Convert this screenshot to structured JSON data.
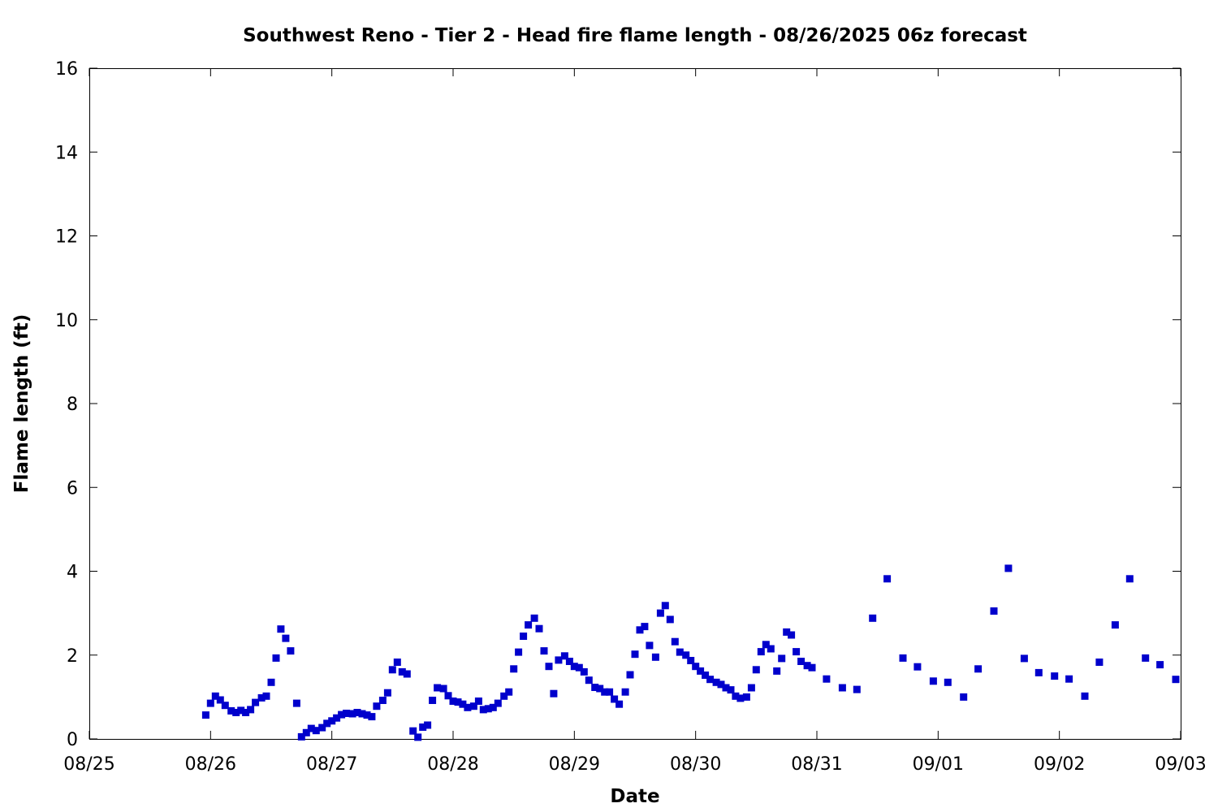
{
  "chart_data": {
    "type": "scatter",
    "title": "Southwest Reno - Tier 2 - Head fire flame length - 08/26/2025 06z forecast",
    "xlabel": "Date",
    "ylabel": "Flame length (ft)",
    "x_unit": "days after 08/25 00z",
    "xlim": [
      0,
      9
    ],
    "ylim": [
      0,
      16
    ],
    "grid": false,
    "legend": "none",
    "x_ticks": [
      "08/25",
      "08/26",
      "08/27",
      "08/28",
      "08/29",
      "08/30",
      "08/31",
      "09/01",
      "09/02",
      "09/03"
    ],
    "y_ticks": [
      "0",
      "2",
      "4",
      "6",
      "8",
      "10",
      "12",
      "14",
      "16"
    ],
    "marker_color": "#0000cc",
    "series": [
      {
        "name": "",
        "points": [
          [
            0.96,
            0.57
          ],
          [
            1.0,
            0.85
          ],
          [
            1.04,
            1.02
          ],
          [
            1.08,
            0.93
          ],
          [
            1.12,
            0.8
          ],
          [
            1.17,
            0.67
          ],
          [
            1.21,
            0.63
          ],
          [
            1.25,
            0.68
          ],
          [
            1.29,
            0.63
          ],
          [
            1.33,
            0.7
          ],
          [
            1.37,
            0.87
          ],
          [
            1.42,
            0.98
          ],
          [
            1.46,
            1.02
          ],
          [
            1.5,
            1.35
          ],
          [
            1.54,
            1.93
          ],
          [
            1.58,
            2.62
          ],
          [
            1.62,
            2.4
          ],
          [
            1.66,
            2.1
          ],
          [
            1.71,
            0.85
          ],
          [
            1.75,
            0.05
          ],
          [
            1.79,
            0.15
          ],
          [
            1.83,
            0.25
          ],
          [
            1.87,
            0.2
          ],
          [
            1.92,
            0.27
          ],
          [
            1.96,
            0.37
          ],
          [
            2.0,
            0.43
          ],
          [
            2.04,
            0.5
          ],
          [
            2.08,
            0.58
          ],
          [
            2.12,
            0.61
          ],
          [
            2.17,
            0.6
          ],
          [
            2.21,
            0.63
          ],
          [
            2.25,
            0.6
          ],
          [
            2.29,
            0.57
          ],
          [
            2.33,
            0.53
          ],
          [
            2.37,
            0.78
          ],
          [
            2.42,
            0.92
          ],
          [
            2.46,
            1.1
          ],
          [
            2.5,
            1.65
          ],
          [
            2.54,
            1.83
          ],
          [
            2.58,
            1.6
          ],
          [
            2.62,
            1.55
          ],
          [
            2.67,
            0.19
          ],
          [
            2.71,
            0.04
          ],
          [
            2.75,
            0.28
          ],
          [
            2.79,
            0.33
          ],
          [
            2.83,
            0.92
          ],
          [
            2.87,
            1.22
          ],
          [
            2.92,
            1.2
          ],
          [
            2.96,
            1.03
          ],
          [
            3.0,
            0.9
          ],
          [
            3.04,
            0.88
          ],
          [
            3.08,
            0.83
          ],
          [
            3.12,
            0.75
          ],
          [
            3.17,
            0.78
          ],
          [
            3.21,
            0.9
          ],
          [
            3.25,
            0.7
          ],
          [
            3.29,
            0.72
          ],
          [
            3.33,
            0.75
          ],
          [
            3.37,
            0.85
          ],
          [
            3.42,
            1.02
          ],
          [
            3.46,
            1.12
          ],
          [
            3.5,
            1.67
          ],
          [
            3.54,
            2.07
          ],
          [
            3.58,
            2.45
          ],
          [
            3.62,
            2.72
          ],
          [
            3.67,
            2.88
          ],
          [
            3.71,
            2.63
          ],
          [
            3.75,
            2.1
          ],
          [
            3.79,
            1.73
          ],
          [
            3.83,
            1.08
          ],
          [
            3.87,
            1.88
          ],
          [
            3.92,
            1.98
          ],
          [
            3.96,
            1.85
          ],
          [
            4.0,
            1.73
          ],
          [
            4.04,
            1.7
          ],
          [
            4.08,
            1.6
          ],
          [
            4.12,
            1.4
          ],
          [
            4.17,
            1.23
          ],
          [
            4.21,
            1.2
          ],
          [
            4.25,
            1.12
          ],
          [
            4.29,
            1.12
          ],
          [
            4.33,
            0.95
          ],
          [
            4.37,
            0.83
          ],
          [
            4.42,
            1.12
          ],
          [
            4.46,
            1.53
          ],
          [
            4.5,
            2.02
          ],
          [
            4.54,
            2.6
          ],
          [
            4.58,
            2.68
          ],
          [
            4.62,
            2.23
          ],
          [
            4.67,
            1.95
          ],
          [
            4.71,
            3.0
          ],
          [
            4.75,
            3.18
          ],
          [
            4.79,
            2.85
          ],
          [
            4.83,
            2.32
          ],
          [
            4.87,
            2.07
          ],
          [
            4.92,
            2.0
          ],
          [
            4.96,
            1.87
          ],
          [
            5.0,
            1.73
          ],
          [
            5.04,
            1.62
          ],
          [
            5.08,
            1.52
          ],
          [
            5.12,
            1.42
          ],
          [
            5.17,
            1.35
          ],
          [
            5.21,
            1.3
          ],
          [
            5.25,
            1.22
          ],
          [
            5.29,
            1.17
          ],
          [
            5.33,
            1.02
          ],
          [
            5.37,
            0.97
          ],
          [
            5.42,
            1.0
          ],
          [
            5.46,
            1.22
          ],
          [
            5.5,
            1.65
          ],
          [
            5.54,
            2.08
          ],
          [
            5.58,
            2.25
          ],
          [
            5.62,
            2.15
          ],
          [
            5.67,
            1.62
          ],
          [
            5.71,
            1.92
          ],
          [
            5.75,
            2.55
          ],
          [
            5.79,
            2.48
          ],
          [
            5.83,
            2.08
          ],
          [
            5.87,
            1.85
          ],
          [
            5.92,
            1.75
          ],
          [
            5.96,
            1.7
          ],
          [
            6.08,
            1.43
          ],
          [
            6.21,
            1.22
          ],
          [
            6.33,
            1.18
          ],
          [
            6.46,
            2.88
          ],
          [
            6.58,
            3.82
          ],
          [
            6.71,
            1.93
          ],
          [
            6.83,
            1.72
          ],
          [
            6.96,
            1.38
          ],
          [
            7.08,
            1.35
          ],
          [
            7.21,
            1.0
          ],
          [
            7.33,
            1.67
          ],
          [
            7.46,
            3.05
          ],
          [
            7.58,
            4.07
          ],
          [
            7.71,
            1.92
          ],
          [
            7.83,
            1.58
          ],
          [
            7.96,
            1.5
          ],
          [
            8.08,
            1.43
          ],
          [
            8.21,
            1.02
          ],
          [
            8.33,
            1.83
          ],
          [
            8.46,
            2.72
          ],
          [
            8.58,
            3.82
          ],
          [
            8.71,
            1.93
          ],
          [
            8.83,
            1.77
          ],
          [
            8.96,
            1.42
          ]
        ]
      }
    ]
  }
}
